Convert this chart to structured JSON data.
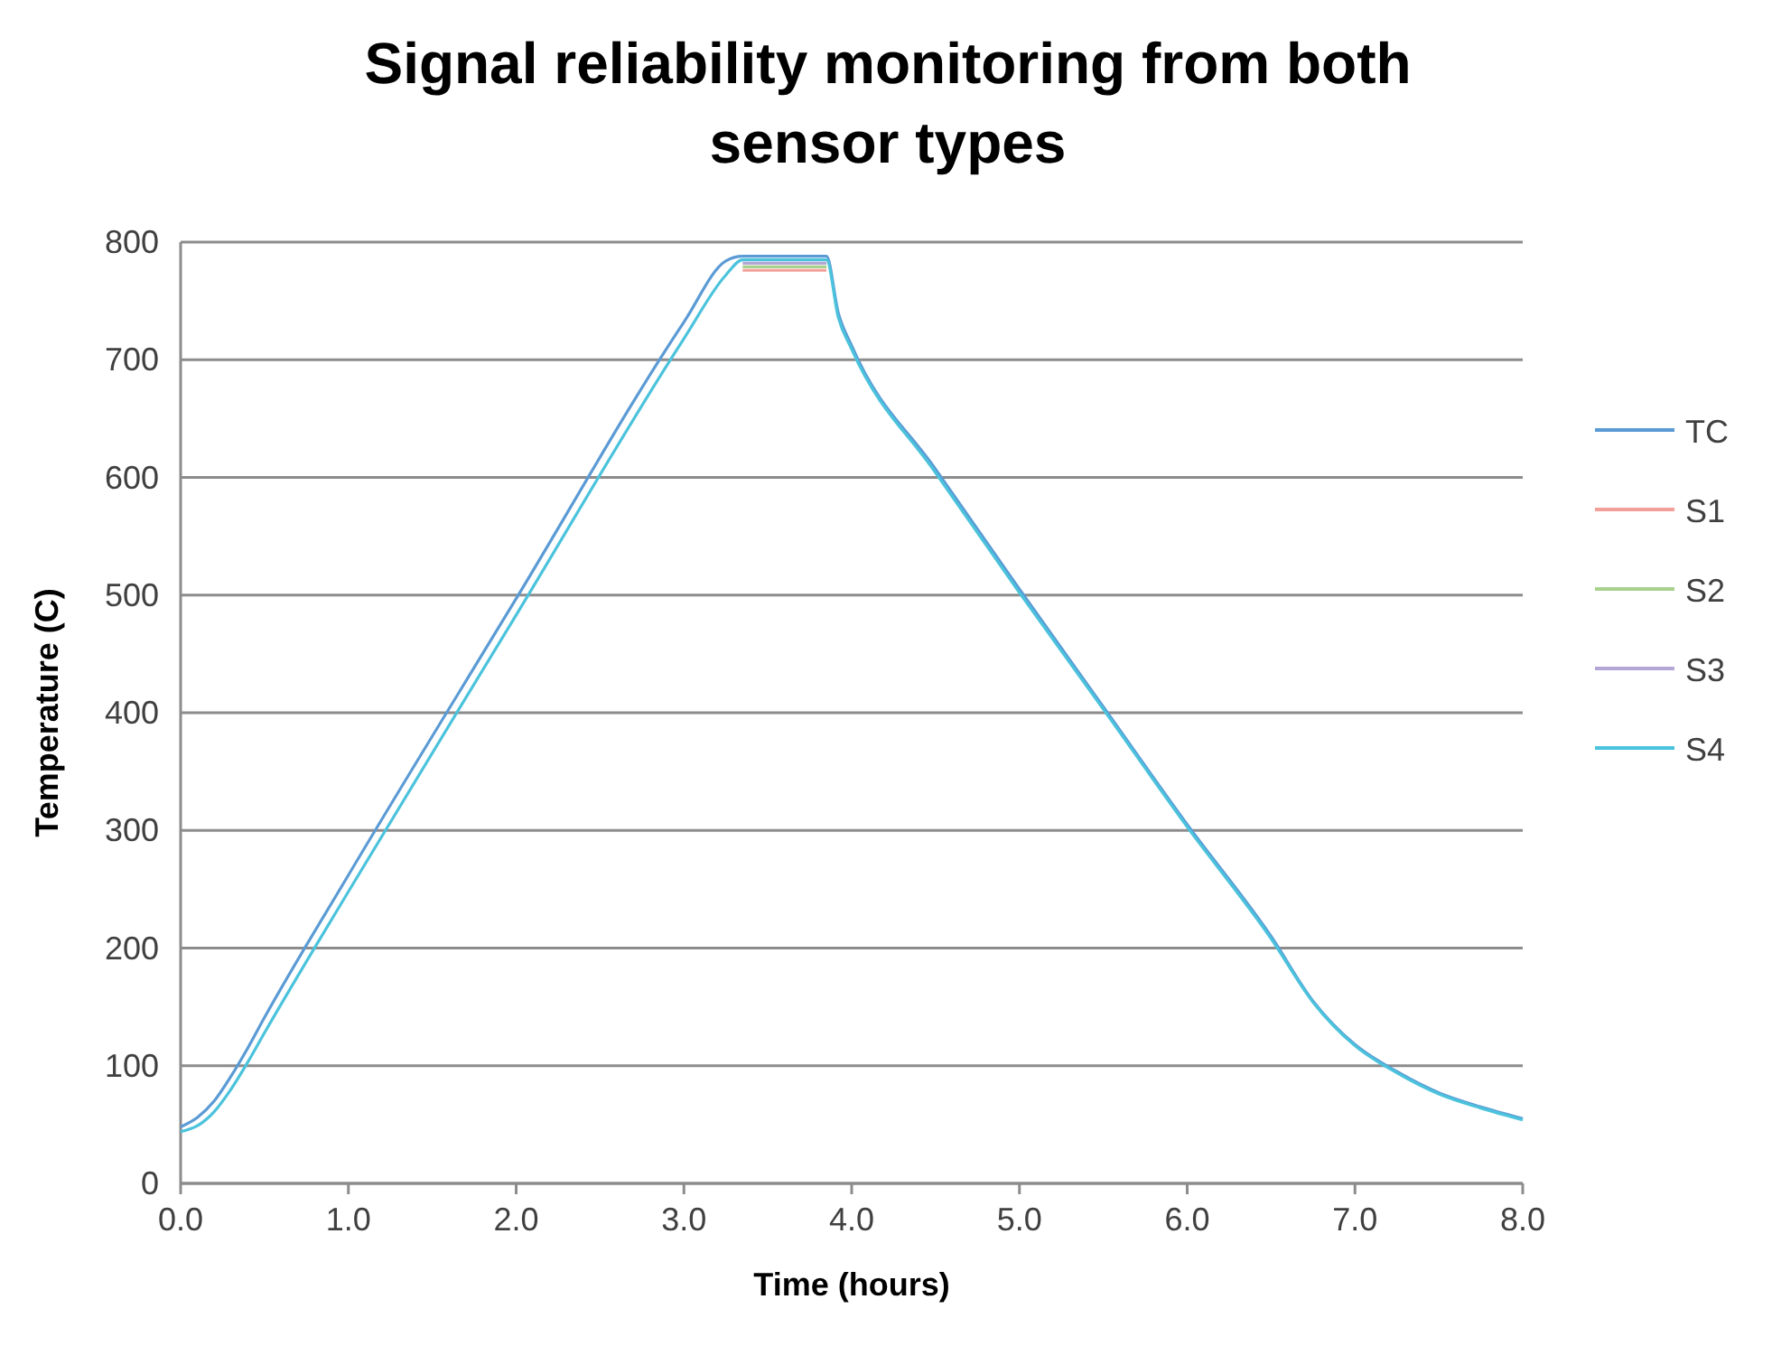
{
  "chart_data": {
    "type": "line",
    "title": "Signal reliability monitoring from both sensor types",
    "xlabel": "Time (hours)",
    "ylabel": "Temperature (C)",
    "x": [
      0,
      0.1,
      0.2,
      0.3,
      0.4,
      0.5,
      1.0,
      2.0,
      3.0,
      3.25,
      3.35,
      3.6,
      3.85,
      3.92,
      4.0,
      4.5,
      5.0,
      5.5,
      6.0,
      6.5,
      6.75,
      7.0,
      7.25,
      7.5,
      7.75,
      8.0
    ],
    "series": [
      {
        "name": "TC",
        "color": "#5b9bd5",
        "values": [
          48,
          56,
          70,
          91,
          115,
          141,
          262,
          497,
          732,
          784,
          788,
          788,
          788,
          740,
          712,
          607,
          505,
          405,
          305,
          210,
          155,
          118,
          95,
          77,
          65,
          55
        ]
      },
      {
        "name": "S1",
        "color": "#f4a09a",
        "values": [
          null,
          null,
          null,
          null,
          null,
          null,
          null,
          null,
          null,
          null,
          776,
          776,
          776,
          null,
          null,
          null,
          null,
          null,
          null,
          null,
          null,
          null,
          null,
          null,
          null,
          null
        ]
      },
      {
        "name": "S2",
        "color": "#a9d18e",
        "values": [
          null,
          null,
          null,
          null,
          null,
          null,
          null,
          null,
          null,
          null,
          779,
          779,
          779,
          null,
          null,
          null,
          null,
          null,
          null,
          null,
          null,
          null,
          null,
          null,
          null,
          null
        ]
      },
      {
        "name": "S3",
        "color": "#b4a7d6",
        "values": [
          null,
          null,
          null,
          null,
          null,
          null,
          null,
          null,
          null,
          null,
          782,
          782,
          782,
          null,
          null,
          null,
          null,
          null,
          null,
          null,
          null,
          null,
          null,
          null,
          null,
          null
        ]
      },
      {
        "name": "S4",
        "color": "#4bc3dc",
        "values": [
          44,
          49,
          61,
          80,
          103,
          128,
          248,
          483,
          718,
          772,
          785,
          785,
          785,
          736,
          709,
          604,
          502,
          403,
          303,
          208,
          154,
          117,
          94,
          76,
          64,
          54
        ]
      }
    ],
    "xlim": [
      0,
      8
    ],
    "xticks": [
      {
        "value": 0,
        "label": "0.0"
      },
      {
        "value": 1,
        "label": "1.0"
      },
      {
        "value": 2,
        "label": "2.0"
      },
      {
        "value": 3,
        "label": "3.0"
      },
      {
        "value": 4,
        "label": "4.0"
      },
      {
        "value": 5,
        "label": "5.0"
      },
      {
        "value": 6,
        "label": "6.0"
      },
      {
        "value": 7,
        "label": "7.0"
      },
      {
        "value": 8,
        "label": "8.0"
      }
    ],
    "ylim": [
      0,
      800
    ],
    "yticks": [
      0,
      100,
      200,
      300,
      400,
      500,
      600,
      700,
      800
    ],
    "grid": "y",
    "legend": "right",
    "marker": "none",
    "line_style": "solid"
  }
}
